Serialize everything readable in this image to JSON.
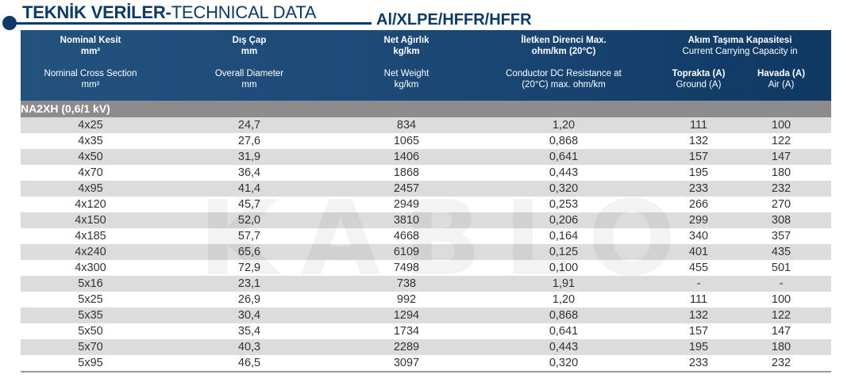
{
  "title": {
    "bold": "TEKNİK VERİLER-",
    "normal": "TECHNICAL DATA"
  },
  "subtitle": "Al/XLPE/HFFR/HFFR",
  "header": {
    "section_tr": "Nominal Kesit",
    "section_unit_tr": "mm²",
    "section_en": "Nominal Cross Section",
    "section_unit_en": "mm²",
    "diameter_tr": "Dış Çap",
    "diameter_unit_tr": "mm",
    "diameter_en": "Overall Diameter",
    "diameter_unit_en": "mm",
    "weight_tr": "Net Ağırlık",
    "weight_unit_tr": "kg/km",
    "weight_en": "Net Weight",
    "weight_unit_en": "kg/km",
    "resistance_tr": "İletken Direnci Max.",
    "resistance_unit_tr": "ohm/km (20°C)",
    "resistance_en_1": "Conductor DC Resistance at",
    "resistance_en_2": "(20°C) max. ohm/km",
    "capacity_tr": "Akım Taşıma Kapasitesi",
    "capacity_en": "Current Carrying Capacity in",
    "ground_tr": "Toprakta (A)",
    "ground_en": "Ground (A)",
    "air_tr": "Havada (A)",
    "air_en": "Air (A)"
  },
  "section_label": "NA2XH (0,6/1 kV)",
  "rows": [
    [
      "4x25",
      "24,7",
      "834",
      "1,20",
      "111",
      "100"
    ],
    [
      "4x35",
      "27,6",
      "1065",
      "0,868",
      "132",
      "122"
    ],
    [
      "4x50",
      "31,9",
      "1406",
      "0,641",
      "157",
      "147"
    ],
    [
      "4x70",
      "36,4",
      "1868",
      "0,443",
      "195",
      "180"
    ],
    [
      "4x95",
      "41,4",
      "2457",
      "0,320",
      "233",
      "232"
    ],
    [
      "4x120",
      "45,7",
      "2949",
      "0,253",
      "266",
      "270"
    ],
    [
      "4x150",
      "52,0",
      "3810",
      "0,206",
      "299",
      "308"
    ],
    [
      "4x185",
      "57,7",
      "4668",
      "0,164",
      "340",
      "357"
    ],
    [
      "4x240",
      "65,6",
      "6109",
      "0,125",
      "401",
      "435"
    ],
    [
      "4x300",
      "72,9",
      "7498",
      "0,100",
      "455",
      "501"
    ],
    [
      "5x16",
      "23,1",
      "738",
      "1,91",
      "-",
      "-"
    ],
    [
      "5x25",
      "26,9",
      "992",
      "1,20",
      "111",
      "100"
    ],
    [
      "5x35",
      "30,4",
      "1294",
      "0,868",
      "132",
      "122"
    ],
    [
      "5x50",
      "35,4",
      "1734",
      "0,641",
      "157",
      "147"
    ],
    [
      "5x70",
      "40,3",
      "2289",
      "0,443",
      "195",
      "180"
    ],
    [
      "5x95",
      "46,5",
      "3097",
      "0,320",
      "233",
      "232"
    ]
  ]
}
